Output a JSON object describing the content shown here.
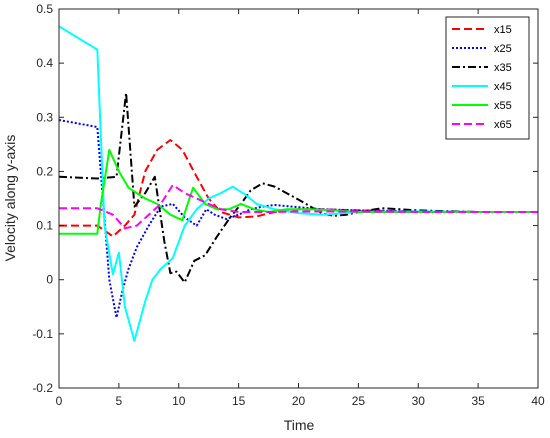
{
  "chart_data": {
    "type": "line",
    "title": "",
    "xlabel": "Time",
    "ylabel": "Velocity along y-axis",
    "xlim": [
      0,
      40
    ],
    "ylim": [
      -0.2,
      0.5
    ],
    "xticks": [
      "0",
      "5",
      "10",
      "15",
      "20",
      "25",
      "30",
      "35",
      "40"
    ],
    "yticks": [
      "-0.2",
      "-0.1",
      "0",
      "0.1",
      "0.2",
      "0.3",
      "0.4",
      "0.5"
    ],
    "grid": false,
    "legend_position": "top-right",
    "series": [
      {
        "name": "x15",
        "color": "#ff0000",
        "dash": "dashed",
        "x": [
          0,
          3.2,
          4.5,
          5.5,
          6.3,
          7.2,
          8.2,
          9.3,
          10.3,
          11.5,
          12.5,
          13.5,
          15,
          16.5,
          18,
          20,
          22,
          25,
          30,
          35,
          40
        ],
        "y": [
          0.1,
          0.1,
          0.08,
          0.1,
          0.12,
          0.2,
          0.24,
          0.258,
          0.24,
          0.19,
          0.15,
          0.125,
          0.115,
          0.117,
          0.125,
          0.13,
          0.13,
          0.128,
          0.126,
          0.125,
          0.125
        ]
      },
      {
        "name": "x25",
        "color": "#0000ff",
        "dash": "dotted",
        "x": [
          0,
          3.2,
          4.2,
          4.8,
          5.3,
          5.8,
          6.5,
          7.5,
          8.5,
          9.5,
          10.5,
          11.5,
          12.3,
          13,
          14,
          15,
          16,
          17,
          18,
          20,
          22,
          25,
          30,
          35,
          40
        ],
        "y": [
          0.295,
          0.282,
          0.0,
          -0.07,
          -0.02,
          0.02,
          0.06,
          0.1,
          0.135,
          0.14,
          0.115,
          0.1,
          0.13,
          0.12,
          0.112,
          0.12,
          0.13,
          0.135,
          0.138,
          0.134,
          0.13,
          0.128,
          0.126,
          0.125,
          0.125
        ]
      },
      {
        "name": "x35",
        "color": "#000000",
        "dash": "dashdot",
        "x": [
          0,
          3.2,
          4.8,
          5.6,
          6.3,
          7.2,
          8,
          8.8,
          9.3,
          9.8,
          10.5,
          11.3,
          12.2,
          13.2,
          14.3,
          15.2,
          16,
          17,
          18,
          19,
          20,
          21,
          22,
          23,
          24,
          25,
          27,
          30,
          35,
          40
        ],
        "y": [
          0.19,
          0.187,
          0.19,
          0.345,
          0.135,
          0.16,
          0.19,
          0.07,
          0.012,
          0.015,
          -0.005,
          0.035,
          0.045,
          0.08,
          0.115,
          0.14,
          0.165,
          0.178,
          0.172,
          0.16,
          0.148,
          0.135,
          0.122,
          0.118,
          0.12,
          0.125,
          0.132,
          0.128,
          0.125,
          0.125
        ]
      },
      {
        "name": "x45",
        "color": "#00ffff",
        "dash": "solid",
        "x": [
          0,
          3.2,
          3.8,
          4.5,
          5,
          5.5,
          6.3,
          7.2,
          7.8,
          8.5,
          9.5,
          10.5,
          11.5,
          12.5,
          13.5,
          14.5,
          15.5,
          16.5,
          18,
          20,
          22,
          25,
          30,
          35,
          40
        ],
        "y": [
          0.468,
          0.425,
          0.1,
          0.01,
          0.05,
          -0.05,
          -0.113,
          -0.04,
          0.0,
          0.02,
          0.04,
          0.1,
          0.13,
          0.15,
          0.16,
          0.172,
          0.158,
          0.14,
          0.13,
          0.123,
          0.12,
          0.125,
          0.126,
          0.125,
          0.125
        ]
      },
      {
        "name": "x55",
        "color": "#00ff00",
        "dash": "solid",
        "x": [
          0,
          3.2,
          3.5,
          4.2,
          5,
          5.8,
          6.5,
          7.2,
          8.2,
          9.3,
          10.3,
          11.2,
          12.2,
          13.2,
          14.2,
          15.2,
          16.3,
          17.5,
          19,
          21,
          23,
          25,
          30,
          35,
          40
        ],
        "y": [
          0.085,
          0.085,
          0.14,
          0.24,
          0.2,
          0.17,
          0.16,
          0.15,
          0.14,
          0.12,
          0.11,
          0.17,
          0.14,
          0.13,
          0.13,
          0.14,
          0.13,
          0.125,
          0.13,
          0.13,
          0.128,
          0.125,
          0.125,
          0.125,
          0.125
        ]
      },
      {
        "name": "x65",
        "color": "#ff00ff",
        "dash": "dashed",
        "x": [
          0,
          3.2,
          4.5,
          5.5,
          6.5,
          7.5,
          8.5,
          9.5,
          10.5,
          11.5,
          12.5,
          13.5,
          15,
          16.5,
          18,
          20,
          22,
          25,
          30,
          35,
          40
        ],
        "y": [
          0.132,
          0.132,
          0.12,
          0.095,
          0.1,
          0.12,
          0.14,
          0.175,
          0.16,
          0.15,
          0.14,
          0.13,
          0.125,
          0.125,
          0.125,
          0.126,
          0.126,
          0.126,
          0.125,
          0.125,
          0.125
        ]
      }
    ]
  }
}
